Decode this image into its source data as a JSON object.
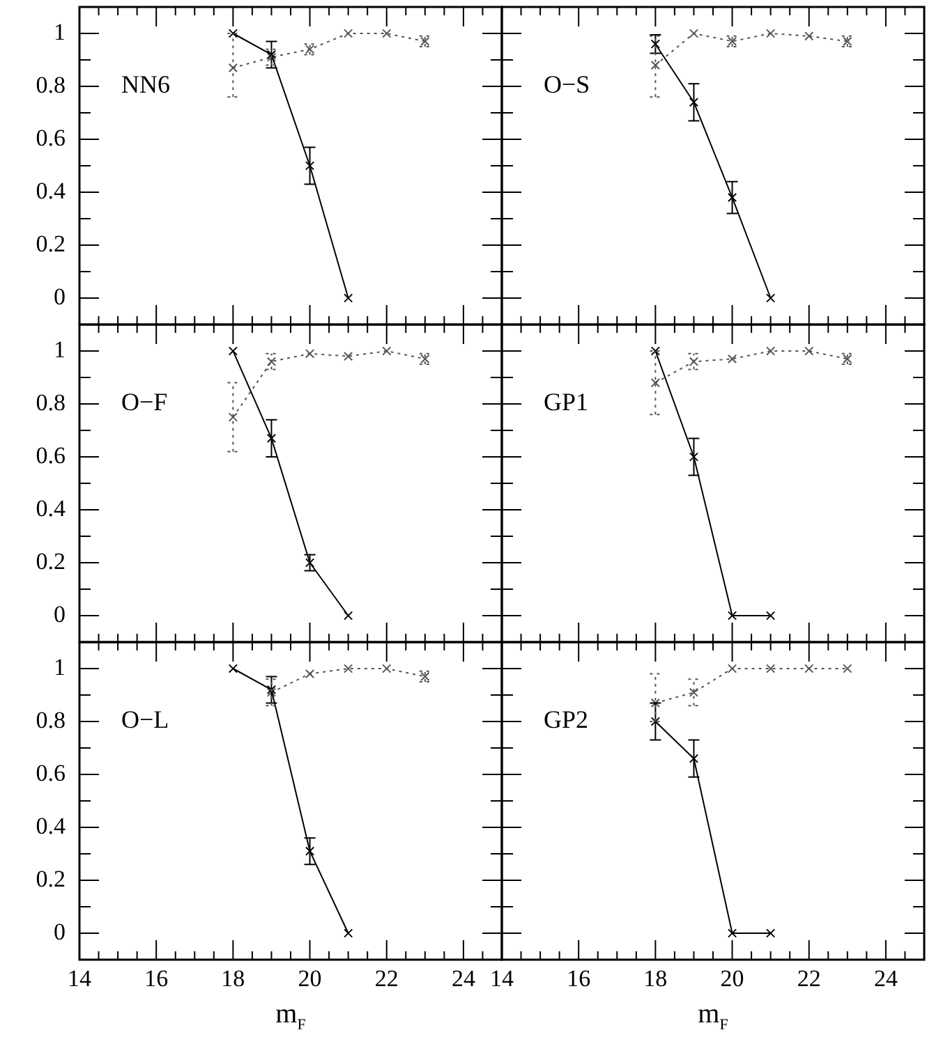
{
  "chart_data": [
    {
      "type": "line",
      "title": "NN6",
      "xlim": [
        14,
        25
      ],
      "ylim": [
        -0.1,
        1.1
      ],
      "tick_labels": "y",
      "xticks": [
        14,
        {
          "value": 14.5,
          "label": null
        },
        {
          "value": 15,
          "label": null
        },
        {
          "value": 15.5,
          "label": null
        },
        16,
        {
          "value": 16.5,
          "label": null
        },
        {
          "value": 17,
          "label": null
        },
        {
          "value": 17.5,
          "label": null
        },
        18,
        {
          "value": 18.5,
          "label": null
        },
        {
          "value": 19,
          "label": null
        },
        {
          "value": 19.5,
          "label": null
        },
        20,
        {
          "value": 20.5,
          "label": null
        },
        {
          "value": 21,
          "label": null
        },
        {
          "value": 21.5,
          "label": null
        },
        22,
        {
          "value": 22.5,
          "label": null
        },
        {
          "value": 23,
          "label": null
        },
        {
          "value": 23.5,
          "label": null
        },
        24,
        {
          "value": 24.5,
          "label": null
        }
      ],
      "yticks": [
        0,
        {
          "value": 0.1,
          "label": null
        },
        0.2,
        {
          "value": 0.3,
          "label": null
        },
        0.4,
        {
          "value": 0.5,
          "label": null
        },
        0.6,
        {
          "value": 0.7,
          "label": null
        },
        0.8,
        {
          "value": 0.9,
          "label": null
        },
        1
      ],
      "series": [
        {
          "color": "#000000",
          "marker": "cross",
          "line_style": "solid",
          "x": [
            18,
            19,
            20,
            21
          ],
          "values": [
            1.0,
            0.92,
            0.5,
            0.0
          ],
          "errors": [
            null,
            0.05,
            0.07,
            null
          ]
        },
        {
          "color": "#555555",
          "marker": "cross",
          "line_style": "dotted",
          "x": [
            18,
            19,
            20,
            21,
            22,
            23
          ],
          "values": [
            0.87,
            0.91,
            0.94,
            1.0,
            1.0,
            0.97
          ],
          "errors": [
            [
              0.76,
              1.0
            ],
            0.03,
            0.02,
            null,
            null,
            0.02
          ]
        }
      ]
    },
    {
      "type": "line",
      "title": "O−S",
      "xlim": [
        14,
        25
      ],
      "ylim": [
        -0.1,
        1.1
      ],
      "tick_labels": false,
      "xticks": [
        14,
        {
          "value": 14.5,
          "label": null
        },
        {
          "value": 15,
          "label": null
        },
        {
          "value": 15.5,
          "label": null
        },
        16,
        {
          "value": 16.5,
          "label": null
        },
        {
          "value": 17,
          "label": null
        },
        {
          "value": 17.5,
          "label": null
        },
        18,
        {
          "value": 18.5,
          "label": null
        },
        {
          "value": 19,
          "label": null
        },
        {
          "value": 19.5,
          "label": null
        },
        20,
        {
          "value": 20.5,
          "label": null
        },
        {
          "value": 21,
          "label": null
        },
        {
          "value": 21.5,
          "label": null
        },
        22,
        {
          "value": 22.5,
          "label": null
        },
        {
          "value": 23,
          "label": null
        },
        {
          "value": 23.5,
          "label": null
        },
        24,
        {
          "value": 24.5,
          "label": null
        }
      ],
      "yticks": [
        0,
        {
          "value": 0.1,
          "label": null
        },
        0.2,
        {
          "value": 0.3,
          "label": null
        },
        0.4,
        {
          "value": 0.5,
          "label": null
        },
        0.6,
        {
          "value": 0.7,
          "label": null
        },
        0.8,
        {
          "value": 0.9,
          "label": null
        },
        1
      ],
      "series": [
        {
          "color": "#000000",
          "marker": "cross",
          "line_style": "solid",
          "x": [
            18,
            19,
            20,
            21
          ],
          "values": [
            0.96,
            0.74,
            0.38,
            0.0
          ],
          "errors": [
            0.035,
            0.07,
            0.06,
            null
          ]
        },
        {
          "color": "#555555",
          "marker": "cross",
          "line_style": "dotted",
          "x": [
            18,
            19,
            20,
            21,
            22,
            23
          ],
          "values": [
            0.88,
            1.0,
            0.97,
            1.0,
            0.99,
            0.97
          ],
          "errors": [
            [
              0.76,
              0.99
            ],
            null,
            0.02,
            null,
            null,
            0.02
          ]
        }
      ]
    },
    {
      "type": "line",
      "title": "O−F",
      "xlim": [
        14,
        25
      ],
      "ylim": [
        -0.1,
        1.1
      ],
      "tick_labels": "y",
      "xticks": [
        14,
        {
          "value": 14.5,
          "label": null
        },
        {
          "value": 15,
          "label": null
        },
        {
          "value": 15.5,
          "label": null
        },
        16,
        {
          "value": 16.5,
          "label": null
        },
        {
          "value": 17,
          "label": null
        },
        {
          "value": 17.5,
          "label": null
        },
        18,
        {
          "value": 18.5,
          "label": null
        },
        {
          "value": 19,
          "label": null
        },
        {
          "value": 19.5,
          "label": null
        },
        20,
        {
          "value": 20.5,
          "label": null
        },
        {
          "value": 21,
          "label": null
        },
        {
          "value": 21.5,
          "label": null
        },
        22,
        {
          "value": 22.5,
          "label": null
        },
        {
          "value": 23,
          "label": null
        },
        {
          "value": 23.5,
          "label": null
        },
        24,
        {
          "value": 24.5,
          "label": null
        }
      ],
      "yticks": [
        0,
        {
          "value": 0.1,
          "label": null
        },
        0.2,
        {
          "value": 0.3,
          "label": null
        },
        0.4,
        {
          "value": 0.5,
          "label": null
        },
        0.6,
        {
          "value": 0.7,
          "label": null
        },
        0.8,
        {
          "value": 0.9,
          "label": null
        },
        1
      ],
      "series": [
        {
          "color": "#000000",
          "marker": "cross",
          "line_style": "solid",
          "x": [
            18,
            19,
            20,
            21
          ],
          "values": [
            1.0,
            0.67,
            0.2,
            0.0
          ],
          "errors": [
            null,
            0.07,
            0.03,
            null
          ]
        },
        {
          "color": "#555555",
          "marker": "cross",
          "line_style": "dotted",
          "x": [
            18,
            19,
            20,
            21,
            22,
            23
          ],
          "values": [
            0.75,
            0.96,
            0.99,
            0.98,
            1.0,
            0.97
          ],
          "errors": [
            0.13,
            0.03,
            null,
            null,
            null,
            0.02
          ]
        }
      ]
    },
    {
      "type": "line",
      "title": "GP1",
      "xlim": [
        14,
        25
      ],
      "ylim": [
        -0.1,
        1.1
      ],
      "tick_labels": false,
      "xticks": [
        14,
        {
          "value": 14.5,
          "label": null
        },
        {
          "value": 15,
          "label": null
        },
        {
          "value": 15.5,
          "label": null
        },
        16,
        {
          "value": 16.5,
          "label": null
        },
        {
          "value": 17,
          "label": null
        },
        {
          "value": 17.5,
          "label": null
        },
        18,
        {
          "value": 18.5,
          "label": null
        },
        {
          "value": 19,
          "label": null
        },
        {
          "value": 19.5,
          "label": null
        },
        20,
        {
          "value": 20.5,
          "label": null
        },
        {
          "value": 21,
          "label": null
        },
        {
          "value": 21.5,
          "label": null
        },
        22,
        {
          "value": 22.5,
          "label": null
        },
        {
          "value": 23,
          "label": null
        },
        {
          "value": 23.5,
          "label": null
        },
        24,
        {
          "value": 24.5,
          "label": null
        }
      ],
      "yticks": [
        0,
        {
          "value": 0.1,
          "label": null
        },
        0.2,
        {
          "value": 0.3,
          "label": null
        },
        0.4,
        {
          "value": 0.5,
          "label": null
        },
        0.6,
        {
          "value": 0.7,
          "label": null
        },
        0.8,
        {
          "value": 0.9,
          "label": null
        },
        1
      ],
      "series": [
        {
          "color": "#000000",
          "marker": "cross",
          "line_style": "solid",
          "x": [
            18,
            19,
            20,
            21
          ],
          "values": [
            1.0,
            0.6,
            0.0,
            0.0
          ],
          "errors": [
            null,
            0.07,
            null,
            null
          ]
        },
        {
          "color": "#555555",
          "marker": "cross",
          "line_style": "dotted",
          "x": [
            18,
            19,
            20,
            21,
            22,
            23
          ],
          "values": [
            0.88,
            0.96,
            0.97,
            1.0,
            1.0,
            0.97
          ],
          "errors": [
            [
              0.76,
              1.0
            ],
            0.03,
            null,
            null,
            null,
            0.02
          ]
        }
      ]
    },
    {
      "type": "line",
      "title": "O−L",
      "xlabel": "m$_{F}$",
      "xlim": [
        14,
        25
      ],
      "ylim": [
        -0.1,
        1.1
      ],
      "xticks": [
        14,
        {
          "value": 14.5,
          "label": null
        },
        {
          "value": 15,
          "label": null
        },
        {
          "value": 15.5,
          "label": null
        },
        16,
        {
          "value": 16.5,
          "label": null
        },
        {
          "value": 17,
          "label": null
        },
        {
          "value": 17.5,
          "label": null
        },
        18,
        {
          "value": 18.5,
          "label": null
        },
        {
          "value": 19,
          "label": null
        },
        {
          "value": 19.5,
          "label": null
        },
        20,
        {
          "value": 20.5,
          "label": null
        },
        {
          "value": 21,
          "label": null
        },
        {
          "value": 21.5,
          "label": null
        },
        22,
        {
          "value": 22.5,
          "label": null
        },
        {
          "value": 23,
          "label": null
        },
        {
          "value": 23.5,
          "label": null
        },
        24,
        {
          "value": 24.5,
          "label": null
        }
      ],
      "yticks": [
        0,
        {
          "value": 0.1,
          "label": null
        },
        0.2,
        {
          "value": 0.3,
          "label": null
        },
        0.4,
        {
          "value": 0.5,
          "label": null
        },
        0.6,
        {
          "value": 0.7,
          "label": null
        },
        0.8,
        {
          "value": 0.9,
          "label": null
        },
        1
      ],
      "series": [
        {
          "color": "#000000",
          "marker": "cross",
          "line_style": "solid",
          "x": [
            18,
            19,
            20,
            21
          ],
          "values": [
            1.0,
            0.92,
            0.31,
            0.0
          ],
          "errors": [
            null,
            0.05,
            0.05,
            null
          ]
        },
        {
          "color": "#555555",
          "marker": "cross",
          "line_style": "dotted",
          "x": [
            19,
            20,
            21,
            22,
            23
          ],
          "values": [
            0.91,
            0.98,
            1.0,
            1.0,
            0.97
          ],
          "errors": [
            0.05,
            null,
            null,
            null,
            0.02
          ]
        }
      ]
    },
    {
      "type": "line",
      "title": "GP2",
      "xlabel": "m$_{F}$",
      "xlim": [
        14,
        25
      ],
      "ylim": [
        -0.1,
        1.1
      ],
      "tick_labels": "x",
      "xticks": [
        14,
        {
          "value": 14.5,
          "label": null
        },
        {
          "value": 15,
          "label": null
        },
        {
          "value": 15.5,
          "label": null
        },
        16,
        {
          "value": 16.5,
          "label": null
        },
        {
          "value": 17,
          "label": null
        },
        {
          "value": 17.5,
          "label": null
        },
        18,
        {
          "value": 18.5,
          "label": null
        },
        {
          "value": 19,
          "label": null
        },
        {
          "value": 19.5,
          "label": null
        },
        20,
        {
          "value": 20.5,
          "label": null
        },
        {
          "value": 21,
          "label": null
        },
        {
          "value": 21.5,
          "label": null
        },
        22,
        {
          "value": 22.5,
          "label": null
        },
        {
          "value": 23,
          "label": null
        },
        {
          "value": 23.5,
          "label": null
        },
        24,
        {
          "value": 24.5,
          "label": null
        }
      ],
      "yticks": [
        0,
        {
          "value": 0.1,
          "label": null
        },
        0.2,
        {
          "value": 0.3,
          "label": null
        },
        0.4,
        {
          "value": 0.5,
          "label": null
        },
        0.6,
        {
          "value": 0.7,
          "label": null
        },
        0.8,
        {
          "value": 0.9,
          "label": null
        },
        1
      ],
      "series": [
        {
          "color": "#000000",
          "marker": "cross",
          "line_style": "solid",
          "x": [
            18,
            19,
            20,
            21
          ],
          "values": [
            0.8,
            0.66,
            0.0,
            0.0
          ],
          "errors": [
            0.07,
            0.07,
            null,
            null
          ]
        },
        {
          "color": "#555555",
          "marker": "cross",
          "line_style": "dotted",
          "x": [
            18,
            19,
            20,
            21,
            22,
            23
          ],
          "values": [
            0.87,
            0.91,
            1.0,
            1.0,
            1.0,
            1.0
          ],
          "errors": [
            [
              0.8,
              0.98
            ],
            0.05,
            null,
            null,
            null,
            null
          ]
        }
      ]
    }
  ]
}
